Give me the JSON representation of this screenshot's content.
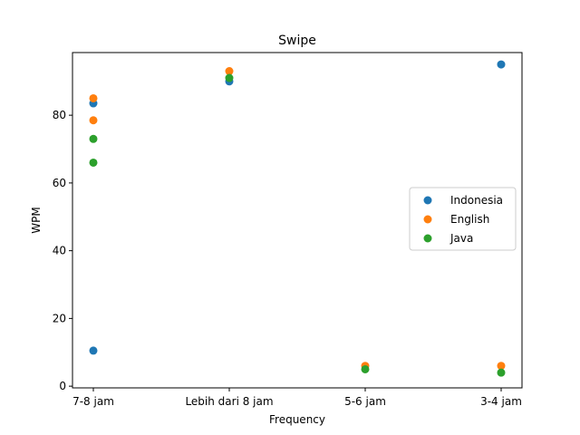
{
  "chart_data": {
    "type": "scatter",
    "title": "Swipe",
    "xlabel": "Frequency",
    "ylabel": "WPM",
    "categories": [
      "7-8 jam",
      "Lebih dari 8 jam",
      "5-6 jam",
      "3-4 jam"
    ],
    "ylim": [
      -0.5,
      98.5
    ],
    "yticks": [
      0,
      20,
      40,
      60,
      80
    ],
    "grid": false,
    "legend_position": "center-right",
    "series": [
      {
        "name": "Indonesia",
        "color": "#1f77b4",
        "points": [
          {
            "x": "7-8 jam",
            "y": 83.5
          },
          {
            "x": "7-8 jam",
            "y": 10.5
          },
          {
            "x": "Lebih dari 8 jam",
            "y": 90
          },
          {
            "x": "3-4 jam",
            "y": 95
          }
        ]
      },
      {
        "name": "English",
        "color": "#ff7f0e",
        "points": [
          {
            "x": "7-8 jam",
            "y": 85
          },
          {
            "x": "7-8 jam",
            "y": 78.5
          },
          {
            "x": "Lebih dari 8 jam",
            "y": 93
          },
          {
            "x": "5-6 jam",
            "y": 6
          },
          {
            "x": "3-4 jam",
            "y": 6
          }
        ]
      },
      {
        "name": "Java",
        "color": "#2ca02c",
        "points": [
          {
            "x": "7-8 jam",
            "y": 73
          },
          {
            "x": "7-8 jam",
            "y": 66
          },
          {
            "x": "Lebih dari 8 jam",
            "y": 91
          },
          {
            "x": "5-6 jam",
            "y": 5
          },
          {
            "x": "3-4 jam",
            "y": 4
          }
        ]
      }
    ]
  }
}
